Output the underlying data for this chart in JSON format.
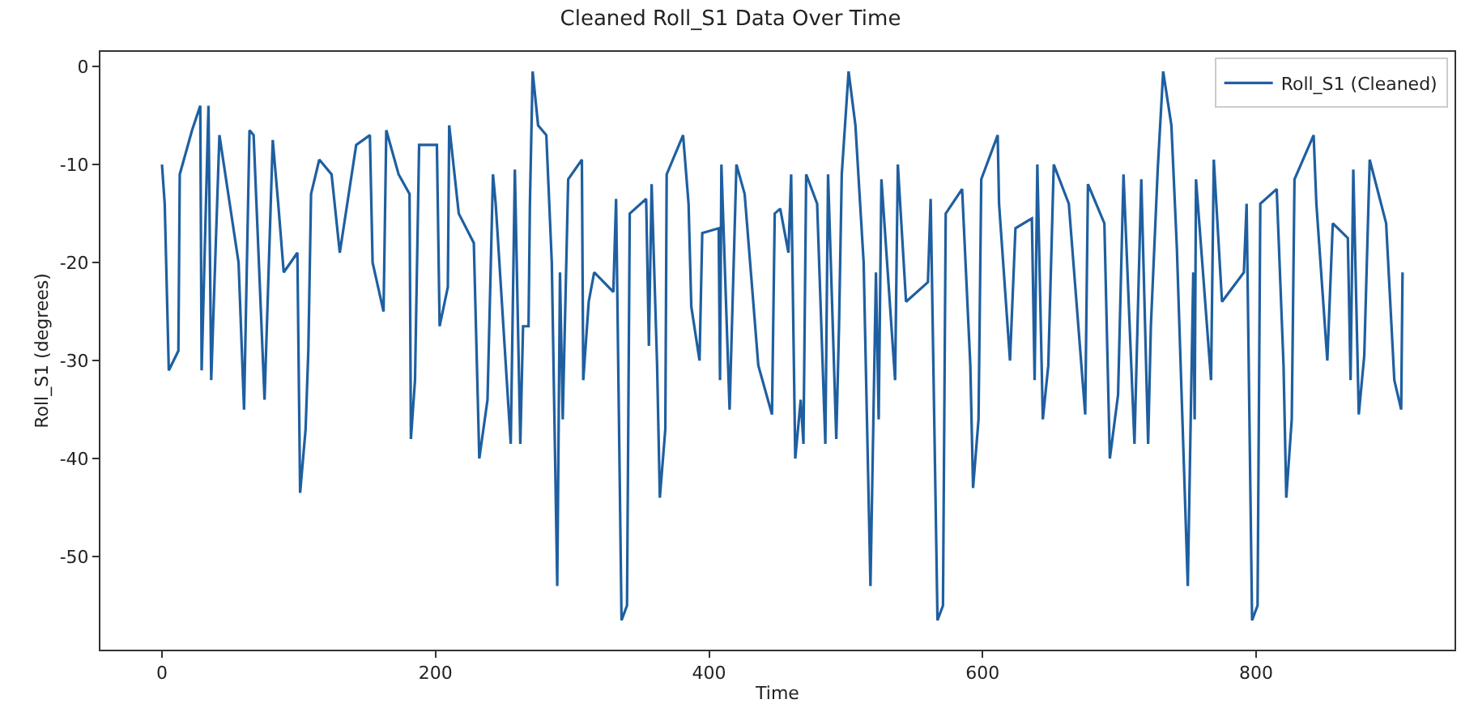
{
  "chart_data": {
    "type": "line",
    "title": "Cleaned Roll_S1 Data Over Time",
    "xlabel": "Time",
    "ylabel": "Roll_S1 (degrees)",
    "x": [
      0,
      2,
      5,
      12,
      13,
      22,
      28,
      29,
      34,
      36,
      42,
      56,
      60,
      64,
      67,
      75,
      81,
      85,
      89,
      99,
      101,
      105,
      107,
      109,
      115,
      124,
      130,
      142,
      152,
      154,
      162,
      164,
      173,
      181,
      182,
      185,
      188,
      201,
      203,
      209,
      210,
      217,
      228,
      232,
      238,
      242,
      244,
      255,
      258,
      262,
      264,
      268,
      269,
      271,
      275,
      281,
      285,
      289,
      291,
      293,
      297,
      307,
      308,
      312,
      316,
      330,
      332,
      336,
      340,
      342,
      354,
      356,
      358,
      362,
      364,
      368,
      369,
      381,
      385,
      387,
      393,
      395,
      407,
      408,
      409,
      415,
      416,
      420,
      426,
      436,
      446,
      448,
      452,
      458,
      460,
      463,
      467,
      469,
      471,
      479,
      485,
      487,
      493,
      495,
      497,
      502,
      507,
      513,
      518,
      522,
      524,
      526,
      536,
      538,
      544,
      560,
      562,
      567,
      571,
      573,
      585,
      591,
      593,
      597,
      599,
      611,
      612,
      620,
      624,
      636,
      638,
      640,
      644,
      648,
      652,
      663,
      675,
      677,
      689,
      693,
      699,
      703,
      711,
      716,
      721,
      723,
      728,
      732,
      738,
      742,
      750,
      754,
      755,
      756,
      767,
      769,
      775,
      791,
      793,
      797,
      801,
      803,
      815,
      820,
      822,
      826,
      828,
      842,
      844,
      852,
      856,
      867,
      869,
      871,
      875,
      879,
      883,
      895,
      901,
      906,
      907
    ],
    "series": [
      {
        "name": "Roll_S1 (Cleaned)",
        "color": "#1f5fa0",
        "values": [
          -10,
          -14,
          -31,
          -29,
          -11,
          -6.5,
          -4,
          -31,
          -4,
          -32,
          -7,
          -20,
          -35,
          -6.5,
          -7,
          -34,
          -7.5,
          -14,
          -21,
          -19,
          -43.5,
          -37,
          -29,
          -13,
          -9.5,
          -11,
          -19,
          -8,
          -7,
          -20,
          -25,
          -6.5,
          -11,
          -13,
          -38,
          -32,
          -8,
          -8,
          -26.5,
          -22.5,
          -6,
          -15,
          -18,
          -40,
          -34,
          -11,
          -14,
          -38.5,
          -10.5,
          -38.5,
          -26.5,
          -26.5,
          -14,
          -0.5,
          -6,
          -7,
          -20,
          -53,
          -21,
          -36,
          -11.5,
          -9.5,
          -32,
          -24,
          -21,
          -23,
          -13.5,
          -56.5,
          -55,
          -15,
          -13.5,
          -28.5,
          -12,
          -30.5,
          -44,
          -37,
          -11,
          -7,
          -14,
          -24.5,
          -30,
          -17,
          -16.5,
          -32,
          -10,
          -35,
          -30,
          -10,
          -13,
          -30.5,
          -35.5,
          -15,
          -14.5,
          -19,
          -11,
          -40,
          -34,
          -38.5,
          -11,
          -14,
          -38.5,
          -11,
          -38,
          -26.5,
          -11,
          -0.5,
          -6,
          -20,
          -53,
          -21,
          -36,
          -11.5,
          -32,
          -10,
          -24,
          -22,
          -13.5,
          -56.5,
          -55,
          -15,
          -12.5,
          -30.5,
          -43,
          -36,
          -11.5,
          -7,
          -14,
          -30,
          -16.5,
          -15.5,
          -32,
          -10,
          -36,
          -30.5,
          -10,
          -14,
          -35.5,
          -12,
          -16,
          -40,
          -33.5,
          -11,
          -38.5,
          -11.5,
          -38.5,
          -26.5,
          -10.5,
          -0.5,
          -6,
          -18.5,
          -53,
          -21,
          -36,
          -11.5,
          -32,
          -9.5,
          -24,
          -21,
          -14,
          -56.5,
          -55,
          -14,
          -12.5,
          -30.5,
          -44,
          -36,
          -11.5,
          -7,
          -14,
          -30,
          -16,
          -17.5,
          -32,
          -10.5,
          -35.5,
          -29.5,
          -9.5,
          -16,
          -32,
          -35,
          -21
        ]
      }
    ],
    "xlim": [
      -45,
      945
    ],
    "ylim": [
      -59.5,
      1.5
    ],
    "xticks": [
      0,
      200,
      400,
      600,
      800
    ],
    "yticks": [
      -50,
      -40,
      -30,
      -20,
      -10,
      0
    ],
    "legend": "top right",
    "marker": "none",
    "line_style": "solid"
  }
}
